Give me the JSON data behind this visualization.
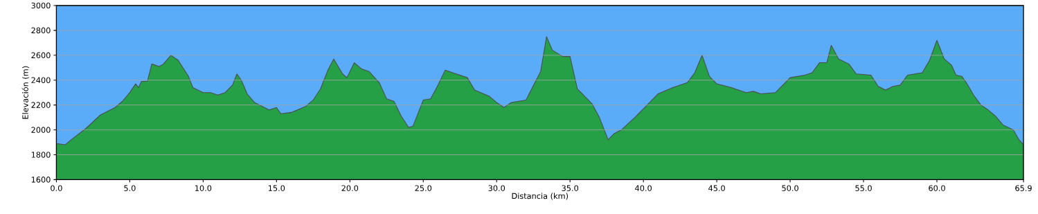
{
  "chart_data": {
    "type": "area",
    "xlabel": "Distancia   (km)",
    "ylabel": "Elevación (m)",
    "x": [
      0,
      0.6,
      1,
      2,
      3,
      3.5,
      4,
      4.5,
      5,
      5.4,
      5.6,
      5.8,
      6.2,
      6.5,
      7,
      7.3,
      7.8,
      8.3,
      9,
      9.3,
      10,
      10.5,
      11,
      11.5,
      12,
      12.3,
      12.6,
      13,
      13.5,
      14,
      14.5,
      15,
      15.3,
      16,
      17,
      17.5,
      18,
      18.5,
      18.9,
      19.5,
      19.8,
      20.3,
      20.8,
      21.3,
      22,
      22.5,
      23,
      23.5,
      24,
      24.3,
      25,
      25.5,
      26,
      26.5,
      27,
      28,
      28.5,
      29.5,
      30,
      30.5,
      31,
      32,
      33,
      33.4,
      33.8,
      34.5,
      35,
      35.5,
      36,
      36.5,
      37,
      37.6,
      38,
      38.5,
      39.5,
      40,
      41,
      42,
      43,
      43.5,
      44,
      44.5,
      45,
      46,
      47,
      47.5,
      48,
      49,
      50,
      51,
      51.5,
      52,
      52.5,
      52.8,
      53.3,
      54,
      54.5,
      55.5,
      56,
      56.5,
      57,
      57.5,
      58,
      59,
      59.5,
      60,
      60.5,
      61,
      61.3,
      61.7,
      62,
      62.5,
      63,
      63.5,
      64,
      64.5,
      65.2,
      65.6,
      65.9
    ],
    "series": [
      {
        "color": "#25a046",
        "values": [
          1890,
          1880,
          1920,
          2010,
          2120,
          2150,
          2180,
          2230,
          2300,
          2370,
          2340,
          2390,
          2390,
          2530,
          2510,
          2530,
          2600,
          2560,
          2430,
          2340,
          2300,
          2300,
          2280,
          2300,
          2360,
          2450,
          2400,
          2290,
          2220,
          2190,
          2160,
          2180,
          2130,
          2140,
          2190,
          2240,
          2330,
          2480,
          2570,
          2450,
          2420,
          2540,
          2490,
          2470,
          2380,
          2250,
          2230,
          2110,
          2020,
          2030,
          2240,
          2250,
          2360,
          2480,
          2460,
          2420,
          2320,
          2270,
          2220,
          2180,
          2220,
          2240,
          2470,
          2750,
          2640,
          2590,
          2590,
          2330,
          2270,
          2210,
          2100,
          1920,
          1970,
          2000,
          2110,
          2170,
          2290,
          2340,
          2380,
          2460,
          2600,
          2430,
          2370,
          2340,
          2300,
          2310,
          2290,
          2300,
          2420,
          2440,
          2460,
          2540,
          2540,
          2680,
          2570,
          2530,
          2450,
          2440,
          2350,
          2320,
          2350,
          2360,
          2440,
          2460,
          2560,
          2720,
          2570,
          2520,
          2440,
          2430,
          2380,
          2280,
          2200,
          2160,
          2110,
          2040,
          2000,
          1920,
          1880
        ]
      }
    ],
    "xlim": [
      0,
      65.9
    ],
    "ylim": [
      1600,
      3000
    ],
    "xticks": [
      {
        "value": 0,
        "label": "0.0"
      },
      {
        "value": 5,
        "label": "5.0"
      },
      {
        "value": 10,
        "label": "10.0"
      },
      {
        "value": 15,
        "label": "15.0"
      },
      {
        "value": 20,
        "label": "20.0"
      },
      {
        "value": 25,
        "label": "25.0"
      },
      {
        "value": 30,
        "label": "30.0"
      },
      {
        "value": 35,
        "label": "35.0"
      },
      {
        "value": 40,
        "label": "40.0"
      },
      {
        "value": 45,
        "label": "45.0"
      },
      {
        "value": 50,
        "label": "50.0"
      },
      {
        "value": 55,
        "label": "55.0"
      },
      {
        "value": 60,
        "label": "60.0"
      },
      {
        "value": 65.9,
        "label": "65.9"
      }
    ],
    "yticks": [
      1600,
      1800,
      2000,
      2200,
      2400,
      2600,
      2800,
      3000
    ],
    "grid": "y"
  }
}
